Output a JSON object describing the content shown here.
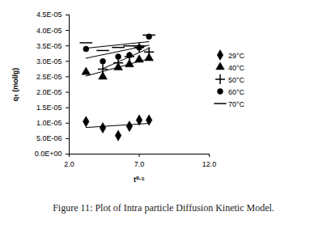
{
  "chart_data": {
    "type": "scatter",
    "title": "Figure 11: Plot of Intra particle Diffusion Kinetic Model.",
    "x_label": "t⁰·⁵",
    "y_label": "qₜ (mol/g)",
    "x": [
      3.2,
      4.4,
      5.5,
      6.3,
      7.0,
      7.7
    ],
    "series": [
      {
        "name": "29°C",
        "color": "#000000",
        "marker": "diamond",
        "values": [
          1.05e-05,
          8.5e-06,
          6e-06,
          9e-06,
          1.1e-05,
          1.1e-05
        ]
      },
      {
        "name": "40°C",
        "color": "#000000",
        "marker": "triangle",
        "values": [
          2.65e-05,
          2.5e-05,
          2.8e-05,
          2.9e-05,
          3.05e-05,
          3.1e-05
        ]
      },
      {
        "name": "50°C",
        "color": "#000000",
        "marker": "plus",
        "values": [
          null,
          2.75e-05,
          2.95e-05,
          3.15e-05,
          3.45e-05,
          3.3e-05
        ]
      },
      {
        "name": "60°C",
        "color": "#000000",
        "marker": "circle",
        "values": [
          3.4e-05,
          3e-05,
          3.15e-05,
          3.2e-05,
          3.45e-05,
          3.8e-05
        ]
      },
      {
        "name": "70°C",
        "color": "#000000",
        "marker": "dash",
        "values": [
          3.6e-05,
          3.35e-05,
          3.45e-05,
          3.5e-05,
          3.5e-05,
          3.85e-05
        ]
      }
    ],
    "xlim": [
      2.0,
      12.0
    ],
    "xticks": [
      {
        "value": 2,
        "label": "2.0"
      },
      {
        "value": 7,
        "label": "7.0"
      },
      {
        "value": 12,
        "label": "12.0"
      }
    ],
    "ylim": [
      0,
      4.5e-05
    ],
    "yticks": [
      {
        "value": 0,
        "label": "0.0E+00"
      },
      {
        "value": 5e-06,
        "label": "5.0E-06"
      },
      {
        "value": 1e-05,
        "label": "1.0E-05"
      },
      {
        "value": 1.5e-05,
        "label": "1.5E-05"
      },
      {
        "value": 2e-05,
        "label": "2.0E-05"
      },
      {
        "value": 2.5e-05,
        "label": "2.5E-05"
      },
      {
        "value": 3e-05,
        "label": "3.0E-05"
      },
      {
        "value": 3.5e-05,
        "label": "3.5E-05"
      },
      {
        "value": 4e-05,
        "label": "4.0E-05"
      },
      {
        "value": 4.5e-05,
        "label": "4.5E-05"
      }
    ],
    "grid": false,
    "legend": "right"
  }
}
